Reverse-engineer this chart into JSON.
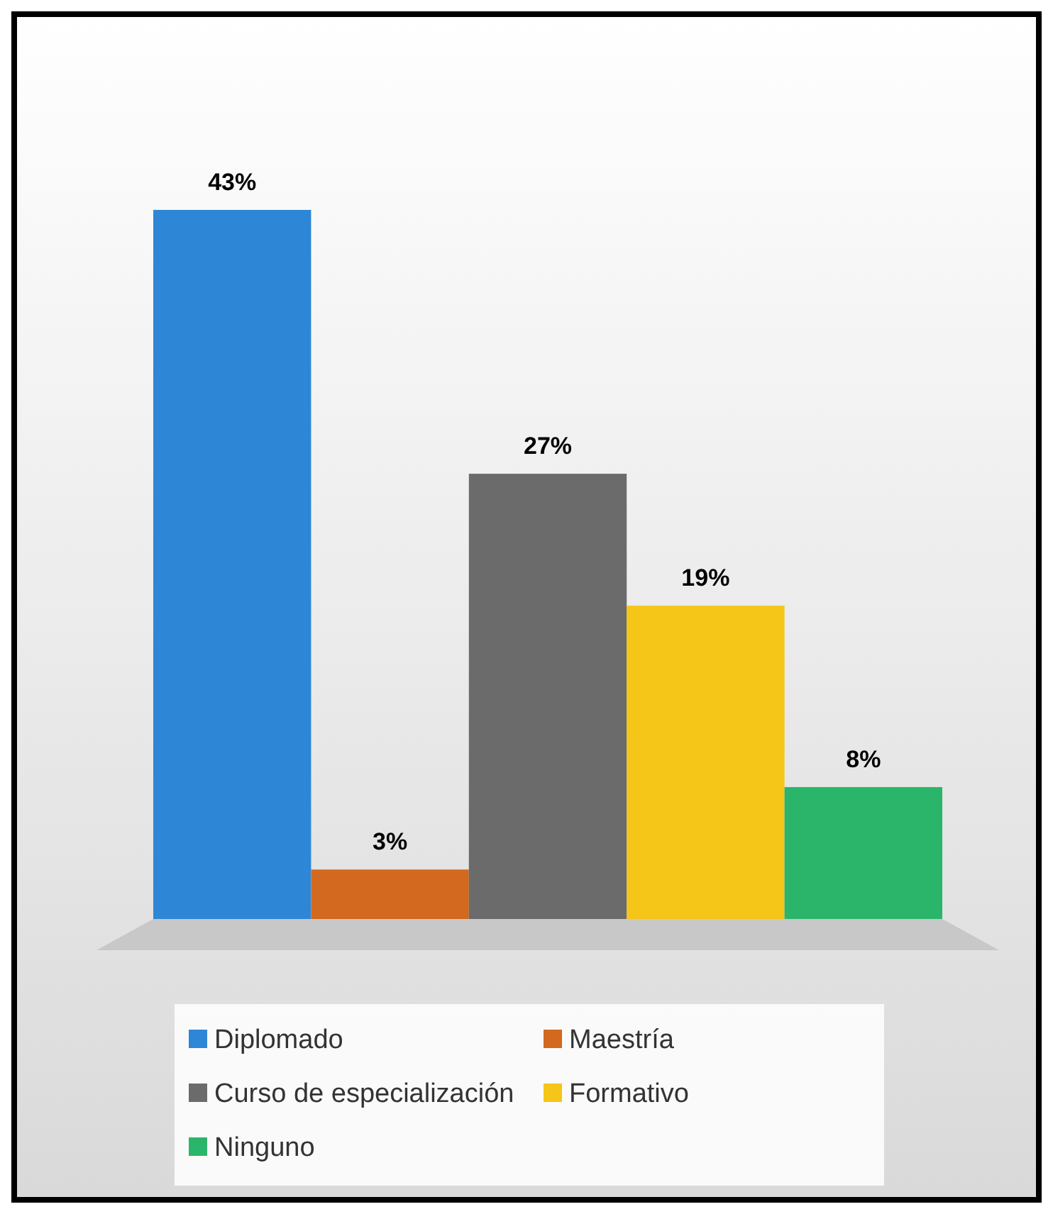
{
  "chart_data": {
    "type": "bar",
    "categories": [
      null,
      null,
      null,
      null,
      null
    ],
    "legend": "bottom",
    "stacked": true,
    "series": [
      {
        "name": "Diplomado",
        "color": "#2e86d6",
        "values": [
          43,
          null,
          null,
          null,
          null
        ],
        "value_labels": [
          "43%",
          null,
          null,
          null,
          null
        ]
      },
      {
        "name": "Maestría",
        "color": "#d2691e",
        "values": [
          null,
          3,
          null,
          null,
          null
        ],
        "value_labels": [
          null,
          "3%",
          null,
          null,
          null
        ]
      },
      {
        "name": "Curso de especialización",
        "color": "#6b6b6b",
        "values": [
          null,
          null,
          27,
          null,
          null
        ],
        "value_labels": [
          null,
          null,
          "27%",
          null,
          null
        ]
      },
      {
        "name": "Formativo",
        "color": "#f5c518",
        "values": [
          null,
          null,
          null,
          19,
          null
        ],
        "value_labels": [
          null,
          null,
          null,
          "19%",
          null
        ]
      },
      {
        "name": "Ninguno",
        "color": "#2bb56b",
        "values": [
          null,
          null,
          null,
          null,
          8
        ],
        "value_labels": [
          null,
          null,
          null,
          null,
          "8%"
        ]
      }
    ]
  }
}
